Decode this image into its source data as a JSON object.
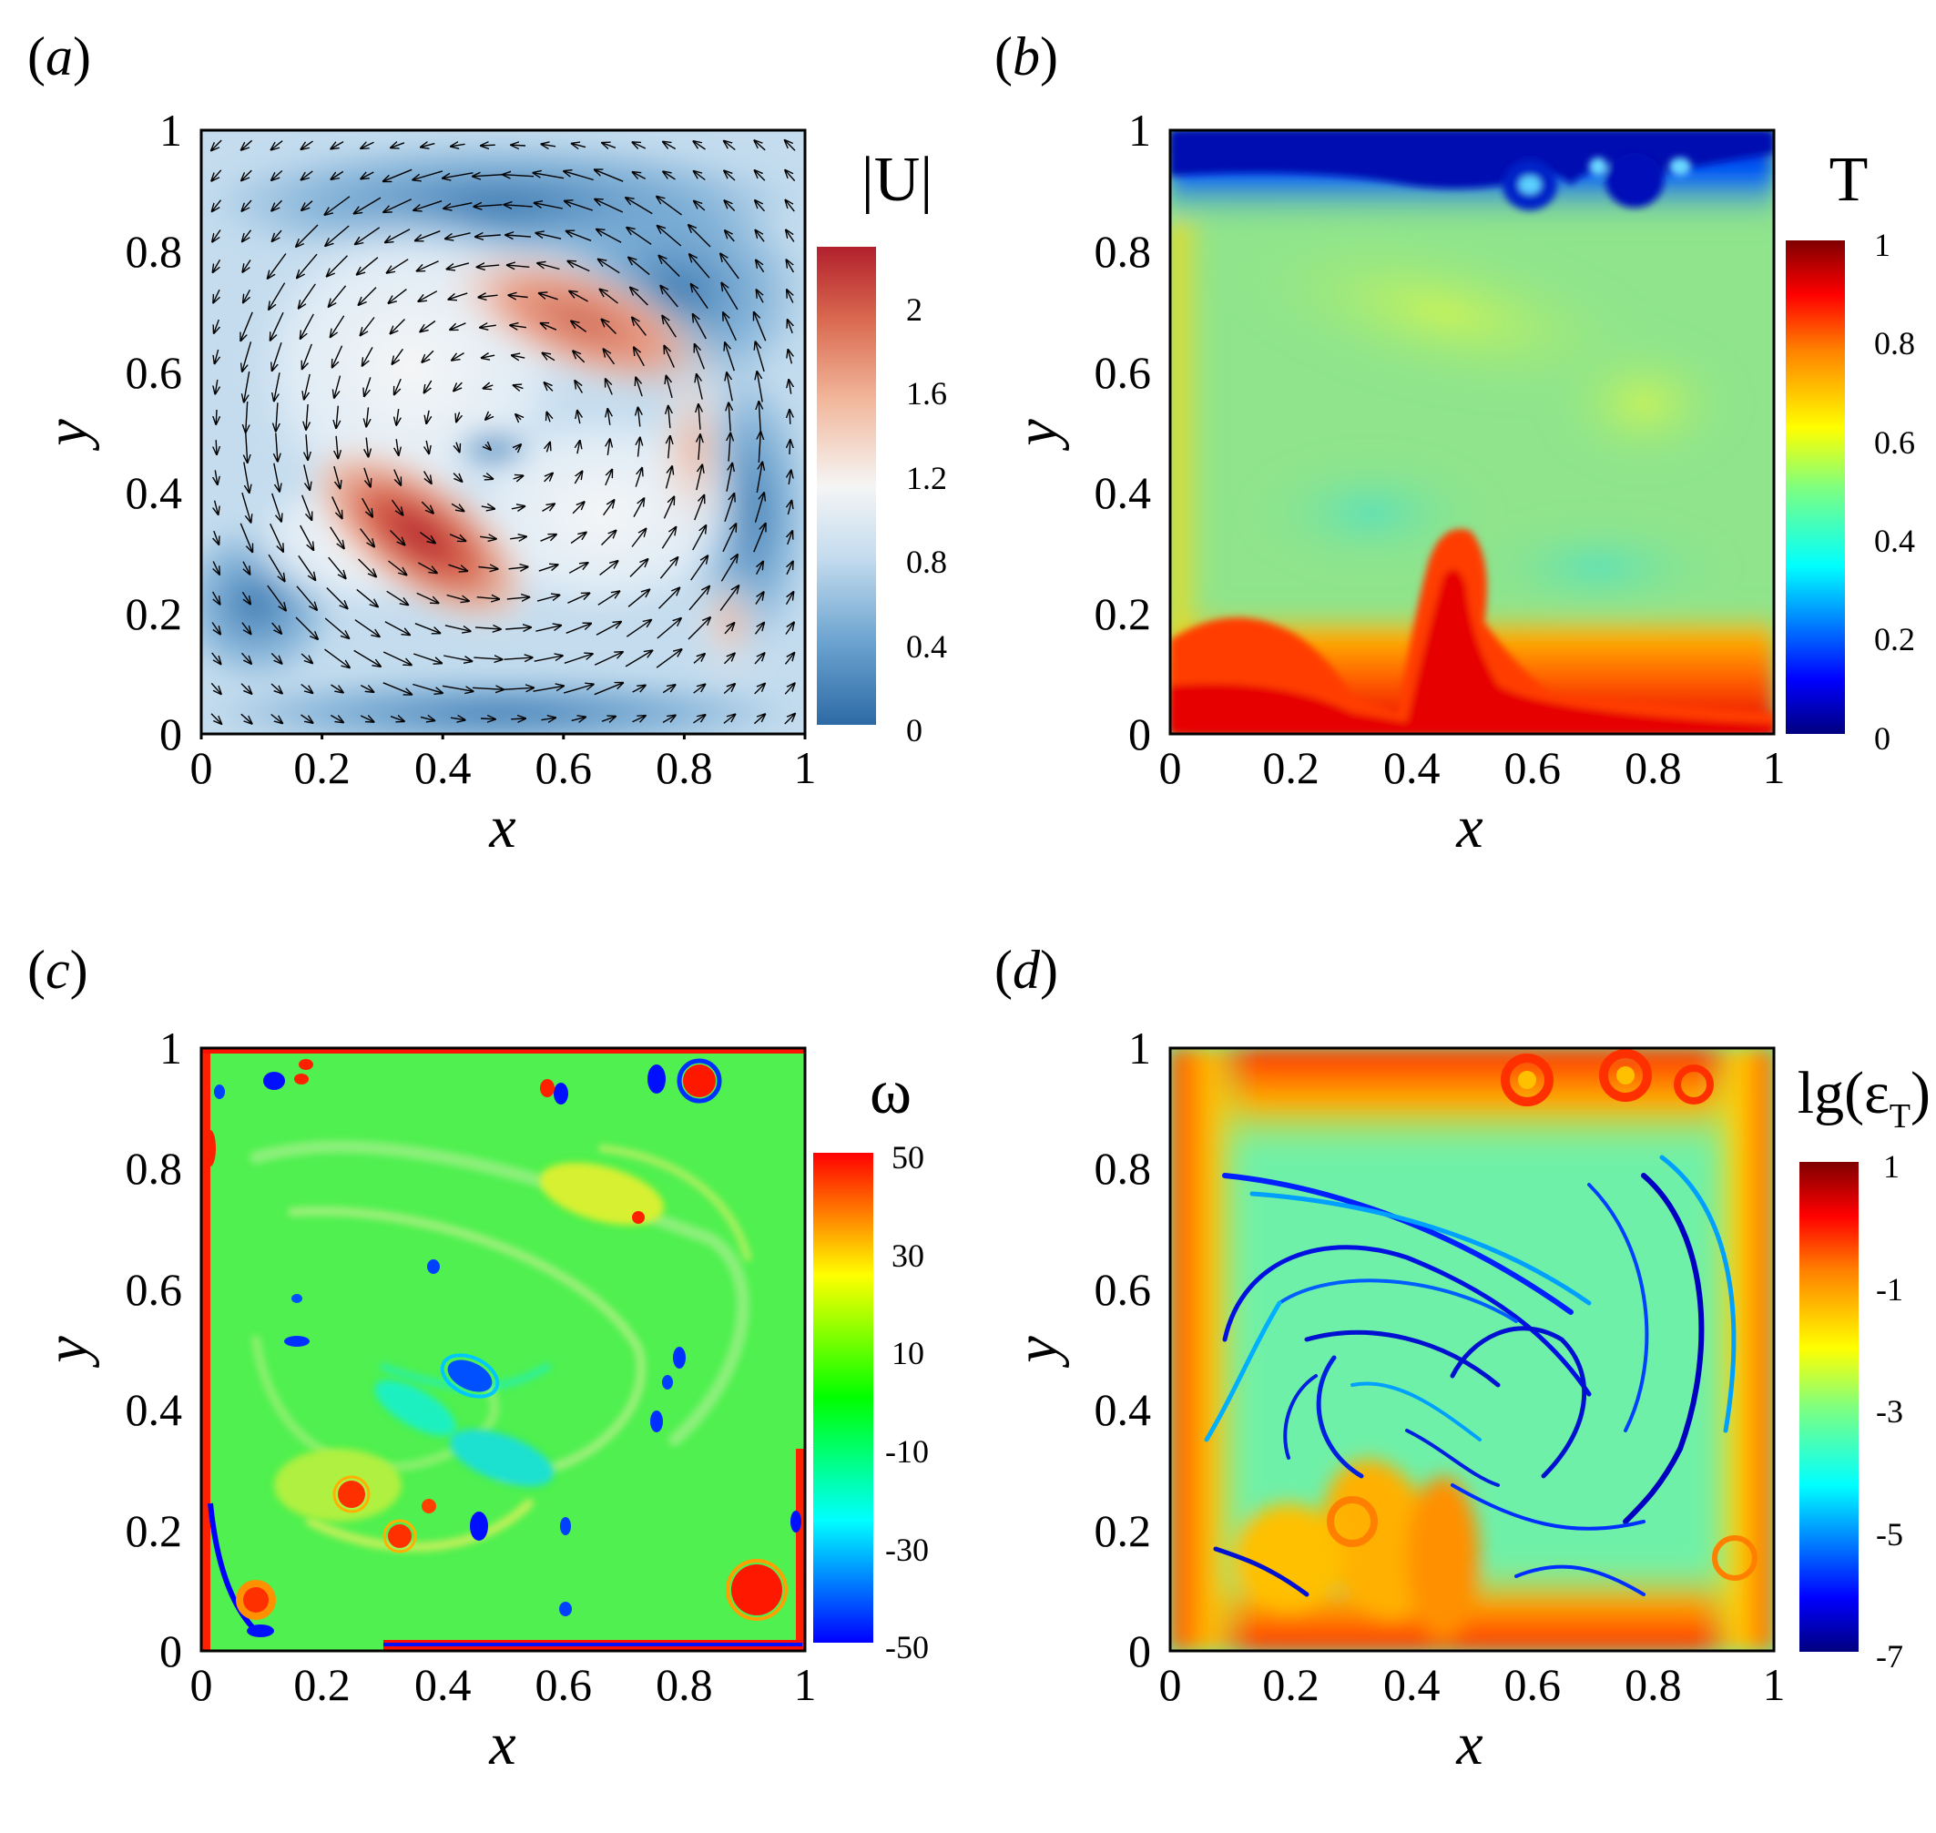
{
  "chart_data": [
    {
      "panel": "(a)",
      "panel_letter": "a",
      "type": "heatmap",
      "field": "velocity magnitude with velocity vectors",
      "xlabel": "x",
      "ylabel": "y",
      "xlim": [
        0,
        1
      ],
      "ylim": [
        0,
        1
      ],
      "xticks": [
        "0",
        "0.2",
        "0.4",
        "0.6",
        "0.8",
        "1"
      ],
      "yticks": [
        "0",
        "0.2",
        "0.4",
        "0.6",
        "0.8",
        "1"
      ],
      "colorbar": {
        "title": "|U|",
        "range": [
          0,
          2.3
        ],
        "ticks": [
          0,
          0.4,
          0.8,
          1.2,
          1.6,
          2
        ],
        "tick_labels": [
          "0",
          "0.4",
          "0.8",
          "1.2",
          "1.6",
          "2"
        ],
        "colormap": [
          "#2d6aa5",
          "#6aa2cf",
          "#c4dcee",
          "#f5f5f5",
          "#f2b79b",
          "#d9684f",
          "#b2202c"
        ]
      },
      "features": [
        {
          "x": 0.36,
          "y": 0.33,
          "magnitude": 2.2
        },
        {
          "x": 0.62,
          "y": 0.64,
          "magnitude": 1.9
        },
        {
          "x": 0.8,
          "y": 0.45,
          "magnitude": 1.3
        },
        {
          "x": 0.15,
          "y": 0.55,
          "magnitude": 1.1
        },
        {
          "x": 0.48,
          "y": 0.43,
          "magnitude": 0.2
        },
        {
          "x": 0.32,
          "y": 0.9,
          "magnitude": 0.3
        },
        {
          "x": 0.85,
          "y": 0.85,
          "magnitude": 0.2
        },
        {
          "x": 0.1,
          "y": 0.2,
          "magnitude": 0.3
        }
      ],
      "vector_field": "counterclockwise central vortex"
    },
    {
      "panel": "(b)",
      "panel_letter": "b",
      "type": "heatmap",
      "field": "temperature",
      "xlabel": "x",
      "ylabel": "y",
      "xlim": [
        0,
        1
      ],
      "ylim": [
        0,
        1
      ],
      "xticks": [
        "0",
        "0.2",
        "0.4",
        "0.6",
        "0.8",
        "1"
      ],
      "yticks": [
        "0",
        "0.2",
        "0.4",
        "0.6",
        "0.8",
        "1"
      ],
      "colorbar": {
        "title": "T",
        "range": [
          0,
          1
        ],
        "ticks": [
          0,
          0.2,
          0.4,
          0.6,
          0.8,
          1
        ],
        "tick_labels": [
          "0",
          "0.2",
          "0.4",
          "0.6",
          "0.8",
          "1"
        ],
        "colormap": [
          "#00007f",
          "#0000ff",
          "#007fff",
          "#00ffff",
          "#7fff7f",
          "#ffff00",
          "#ff7f00",
          "#ff0000",
          "#7f0000"
        ]
      },
      "background_value": 0.55,
      "features": [
        {
          "region": "top boundary layer",
          "value": 0.08
        },
        {
          "region": "bottom boundary layer",
          "value": 0.85
        },
        {
          "region": "hot plume near x=0.45",
          "x": 0.45,
          "y": 0.2,
          "value": 0.82
        }
      ]
    },
    {
      "panel": "(c)",
      "panel_letter": "c",
      "type": "heatmap",
      "field": "vorticity",
      "xlabel": "x",
      "ylabel": "y",
      "xlim": [
        0,
        1
      ],
      "ylim": [
        0,
        1
      ],
      "xticks": [
        "0",
        "0.2",
        "0.4",
        "0.6",
        "0.8",
        "1"
      ],
      "yticks": [
        "0",
        "0.2",
        "0.4",
        "0.6",
        "0.8",
        "1"
      ],
      "colorbar": {
        "title": "ω",
        "range": [
          -50,
          50
        ],
        "ticks": [
          -50,
          -30,
          -10,
          10,
          30,
          50
        ],
        "tick_labels": [
          "-50",
          "-30",
          "-10",
          "10",
          "30",
          "50"
        ],
        "colormap": [
          "#0000ff",
          "#00ffff",
          "#00ff00",
          "#ffff00",
          "#ff0000"
        ]
      },
      "background_value": 0,
      "features": [
        {
          "x": 0.92,
          "y": 0.11,
          "value": 50
        },
        {
          "x": 0.25,
          "y": 0.26,
          "value": 45
        },
        {
          "x": 0.33,
          "y": 0.19,
          "value": 45
        },
        {
          "x": 0.83,
          "y": 0.95,
          "value": 50
        },
        {
          "x": 0.44,
          "y": 0.45,
          "value": -40
        },
        {
          "x": 0.46,
          "y": 0.2,
          "value": -45
        },
        {
          "x": 0.76,
          "y": 0.96,
          "value": -45
        },
        {
          "x": 0.11,
          "y": 0.04,
          "value": -50
        },
        {
          "x": 0.63,
          "y": 0.72,
          "value": 25
        }
      ]
    },
    {
      "panel": "(d)",
      "panel_letter": "d",
      "type": "heatmap",
      "field": "log10 thermal dissipation rate",
      "xlabel": "x",
      "ylabel": "y",
      "xlim": [
        0,
        1
      ],
      "ylim": [
        0,
        1
      ],
      "xticks": [
        "0",
        "0.2",
        "0.4",
        "0.6",
        "0.8",
        "1"
      ],
      "yticks": [
        "0",
        "0.2",
        "0.4",
        "0.6",
        "0.8",
        "1"
      ],
      "colorbar": {
        "title_main": "lg(ε",
        "title_sub": "T",
        "title_close": ")",
        "range": [
          -7,
          1
        ],
        "ticks": [
          -7,
          -5,
          -3,
          -1,
          1
        ],
        "tick_labels": [
          "-7",
          "-5",
          "-3",
          "-1",
          "1"
        ],
        "colormap": [
          "#00007f",
          "#0000ff",
          "#007fff",
          "#00ffff",
          "#7fff7f",
          "#ffff00",
          "#ff7f00",
          "#ff0000",
          "#7f0000"
        ]
      },
      "background_value": -3,
      "features": [
        {
          "region": "top boundary layer",
          "value": -0.8
        },
        {
          "region": "bottom boundary layer",
          "value": -0.8
        },
        {
          "region": "side walls",
          "value": -1.2
        }
      ]
    }
  ]
}
